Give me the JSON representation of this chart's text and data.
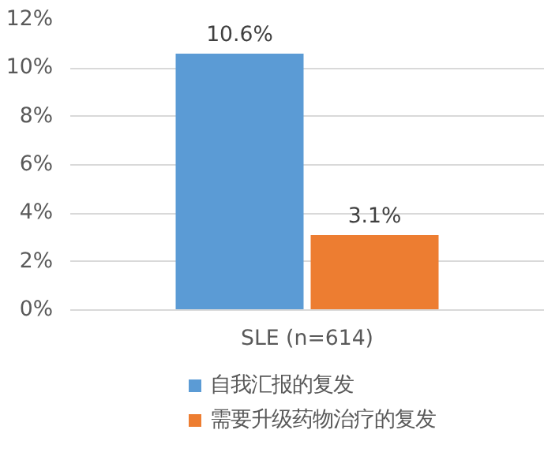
{
  "chart_data": {
    "type": "bar",
    "categories": [
      "SLE (n=614)"
    ],
    "series": [
      {
        "name": "自我汇报的复发",
        "color": "#5b9bd5",
        "values": [
          10.6
        ],
        "value_labels": [
          "10.6%"
        ]
      },
      {
        "name": "需要升级药物治疗的复发",
        "color": "#ed7d31",
        "values": [
          3.1
        ],
        "value_labels": [
          "3.1%"
        ]
      }
    ],
    "ylim": [
      0,
      12
    ],
    "yticks": [
      {
        "value": 0,
        "label": "0%"
      },
      {
        "value": 2,
        "label": "2%"
      },
      {
        "value": 4,
        "label": "4%"
      },
      {
        "value": 6,
        "label": "6%"
      },
      {
        "value": 8,
        "label": "8%"
      },
      {
        "value": 10,
        "label": "10%"
      },
      {
        "value": 12,
        "label": "12%"
      }
    ],
    "grid": "y",
    "legend": "bottom"
  }
}
